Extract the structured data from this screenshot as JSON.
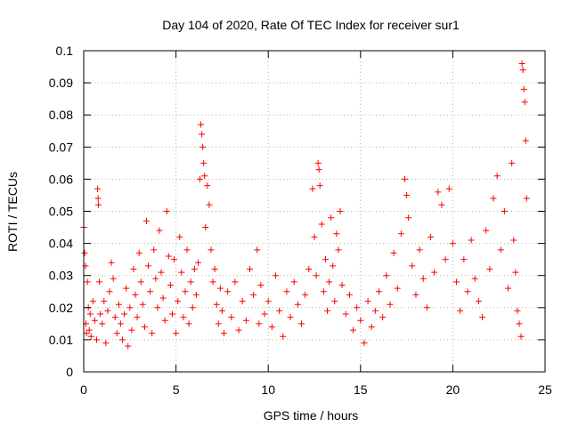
{
  "chart_data": {
    "type": "scatter",
    "title": "Day 104 of 2020, Rate Of TEC Index for receiver sur1",
    "xlabel": "GPS time / hours",
    "ylabel": "ROTI / TECUs",
    "xlim": [
      0,
      25
    ],
    "ylim": [
      0,
      0.1
    ],
    "xticks": [
      "0",
      "5",
      "10",
      "15",
      "20",
      "25"
    ],
    "yticks": [
      "0",
      "0.01",
      "0.02",
      "0.03",
      "0.04",
      "0.05",
      "0.06",
      "0.07",
      "0.08",
      "0.09",
      "0.1"
    ],
    "grid": true,
    "marker": "+",
    "series": [
      {
        "color": "#ff0000",
        "points": [
          [
            0.0,
            0.045
          ],
          [
            0.05,
            0.037
          ],
          [
            0.1,
            0.033
          ],
          [
            0.12,
            0.015
          ],
          [
            0.15,
            0.012
          ],
          [
            0.2,
            0.028
          ],
          [
            0.25,
            0.02
          ],
          [
            0.3,
            0.013
          ],
          [
            0.35,
            0.018
          ],
          [
            0.4,
            0.011
          ],
          [
            0.5,
            0.022
          ],
          [
            0.6,
            0.016
          ],
          [
            0.7,
            0.01
          ],
          [
            0.75,
            0.057
          ],
          [
            0.78,
            0.054
          ],
          [
            0.8,
            0.052
          ],
          [
            0.85,
            0.028
          ],
          [
            0.9,
            0.018
          ],
          [
            1.0,
            0.015
          ],
          [
            1.1,
            0.022
          ],
          [
            1.2,
            0.009
          ],
          [
            1.3,
            0.019
          ],
          [
            1.4,
            0.025
          ],
          [
            1.5,
            0.034
          ],
          [
            1.6,
            0.029
          ],
          [
            1.7,
            0.017
          ],
          [
            1.8,
            0.012
          ],
          [
            1.9,
            0.021
          ],
          [
            2.0,
            0.015
          ],
          [
            2.1,
            0.01
          ],
          [
            2.2,
            0.018
          ],
          [
            2.3,
            0.026
          ],
          [
            2.4,
            0.008
          ],
          [
            2.5,
            0.02
          ],
          [
            2.6,
            0.013
          ],
          [
            2.7,
            0.032
          ],
          [
            2.8,
            0.024
          ],
          [
            2.9,
            0.017
          ],
          [
            3.0,
            0.037
          ],
          [
            3.1,
            0.028
          ],
          [
            3.2,
            0.021
          ],
          [
            3.3,
            0.014
          ],
          [
            3.4,
            0.047
          ],
          [
            3.5,
            0.033
          ],
          [
            3.6,
            0.025
          ],
          [
            3.7,
            0.012
          ],
          [
            3.8,
            0.038
          ],
          [
            3.9,
            0.029
          ],
          [
            4.0,
            0.02
          ],
          [
            4.1,
            0.044
          ],
          [
            4.2,
            0.031
          ],
          [
            4.3,
            0.023
          ],
          [
            4.4,
            0.016
          ],
          [
            4.5,
            0.05
          ],
          [
            4.6,
            0.036
          ],
          [
            4.7,
            0.027
          ],
          [
            4.8,
            0.018
          ],
          [
            4.9,
            0.035
          ],
          [
            5.0,
            0.012
          ],
          [
            5.1,
            0.022
          ],
          [
            5.2,
            0.042
          ],
          [
            5.3,
            0.031
          ],
          [
            5.4,
            0.017
          ],
          [
            5.5,
            0.025
          ],
          [
            5.6,
            0.038
          ],
          [
            5.7,
            0.015
          ],
          [
            5.8,
            0.028
          ],
          [
            5.9,
            0.02
          ],
          [
            6.0,
            0.032
          ],
          [
            6.1,
            0.024
          ],
          [
            6.2,
            0.034
          ],
          [
            6.3,
            0.06
          ],
          [
            6.35,
            0.077
          ],
          [
            6.4,
            0.074
          ],
          [
            6.45,
            0.07
          ],
          [
            6.5,
            0.065
          ],
          [
            6.55,
            0.061
          ],
          [
            6.6,
            0.045
          ],
          [
            6.7,
            0.058
          ],
          [
            6.8,
            0.052
          ],
          [
            6.9,
            0.038
          ],
          [
            7.0,
            0.028
          ],
          [
            7.1,
            0.032
          ],
          [
            7.2,
            0.021
          ],
          [
            7.3,
            0.015
          ],
          [
            7.4,
            0.026
          ],
          [
            7.5,
            0.019
          ],
          [
            7.6,
            0.012
          ],
          [
            7.8,
            0.025
          ],
          [
            8.0,
            0.017
          ],
          [
            8.2,
            0.028
          ],
          [
            8.4,
            0.013
          ],
          [
            8.6,
            0.022
          ],
          [
            8.8,
            0.016
          ],
          [
            9.0,
            0.032
          ],
          [
            9.2,
            0.024
          ],
          [
            9.4,
            0.038
          ],
          [
            9.5,
            0.015
          ],
          [
            9.6,
            0.027
          ],
          [
            9.8,
            0.018
          ],
          [
            10.0,
            0.022
          ],
          [
            10.2,
            0.014
          ],
          [
            10.4,
            0.03
          ],
          [
            10.6,
            0.019
          ],
          [
            10.8,
            0.011
          ],
          [
            11.0,
            0.025
          ],
          [
            11.2,
            0.017
          ],
          [
            11.4,
            0.028
          ],
          [
            11.6,
            0.021
          ],
          [
            11.8,
            0.015
          ],
          [
            12.0,
            0.024
          ],
          [
            12.2,
            0.032
          ],
          [
            12.4,
            0.057
          ],
          [
            12.5,
            0.042
          ],
          [
            12.6,
            0.03
          ],
          [
            12.7,
            0.065
          ],
          [
            12.75,
            0.063
          ],
          [
            12.8,
            0.058
          ],
          [
            12.9,
            0.046
          ],
          [
            13.0,
            0.025
          ],
          [
            13.1,
            0.035
          ],
          [
            13.2,
            0.019
          ],
          [
            13.3,
            0.028
          ],
          [
            13.4,
            0.048
          ],
          [
            13.5,
            0.033
          ],
          [
            13.6,
            0.022
          ],
          [
            13.7,
            0.043
          ],
          [
            13.8,
            0.038
          ],
          [
            13.9,
            0.05
          ],
          [
            14.0,
            0.027
          ],
          [
            14.2,
            0.018
          ],
          [
            14.4,
            0.024
          ],
          [
            14.6,
            0.013
          ],
          [
            14.8,
            0.02
          ],
          [
            15.0,
            0.016
          ],
          [
            15.2,
            0.009
          ],
          [
            15.4,
            0.022
          ],
          [
            15.6,
            0.014
          ],
          [
            15.8,
            0.019
          ],
          [
            16.0,
            0.025
          ],
          [
            16.2,
            0.017
          ],
          [
            16.4,
            0.03
          ],
          [
            16.6,
            0.021
          ],
          [
            16.8,
            0.037
          ],
          [
            17.0,
            0.026
          ],
          [
            17.2,
            0.043
          ],
          [
            17.4,
            0.06
          ],
          [
            17.5,
            0.055
          ],
          [
            17.6,
            0.048
          ],
          [
            17.8,
            0.033
          ],
          [
            18.0,
            0.024
          ],
          [
            18.2,
            0.038
          ],
          [
            18.4,
            0.029
          ],
          [
            18.6,
            0.02
          ],
          [
            18.8,
            0.042
          ],
          [
            19.0,
            0.031
          ],
          [
            19.2,
            0.056
          ],
          [
            19.4,
            0.052
          ],
          [
            19.6,
            0.035
          ],
          [
            19.8,
            0.057
          ],
          [
            20.0,
            0.04
          ],
          [
            20.2,
            0.028
          ],
          [
            20.4,
            0.019
          ],
          [
            20.6,
            0.035
          ],
          [
            20.8,
            0.025
          ],
          [
            21.0,
            0.041
          ],
          [
            21.2,
            0.029
          ],
          [
            21.4,
            0.022
          ],
          [
            21.6,
            0.017
          ],
          [
            21.8,
            0.044
          ],
          [
            22.0,
            0.032
          ],
          [
            22.2,
            0.054
          ],
          [
            22.4,
            0.061
          ],
          [
            22.6,
            0.038
          ],
          [
            22.8,
            0.05
          ],
          [
            23.0,
            0.026
          ],
          [
            23.2,
            0.065
          ],
          [
            23.3,
            0.041
          ],
          [
            23.4,
            0.031
          ],
          [
            23.5,
            0.019
          ],
          [
            23.6,
            0.015
          ],
          [
            23.7,
            0.011
          ],
          [
            23.75,
            0.096
          ],
          [
            23.8,
            0.094
          ],
          [
            23.85,
            0.088
          ],
          [
            23.9,
            0.084
          ],
          [
            23.95,
            0.072
          ],
          [
            24.0,
            0.054
          ]
        ]
      }
    ]
  }
}
